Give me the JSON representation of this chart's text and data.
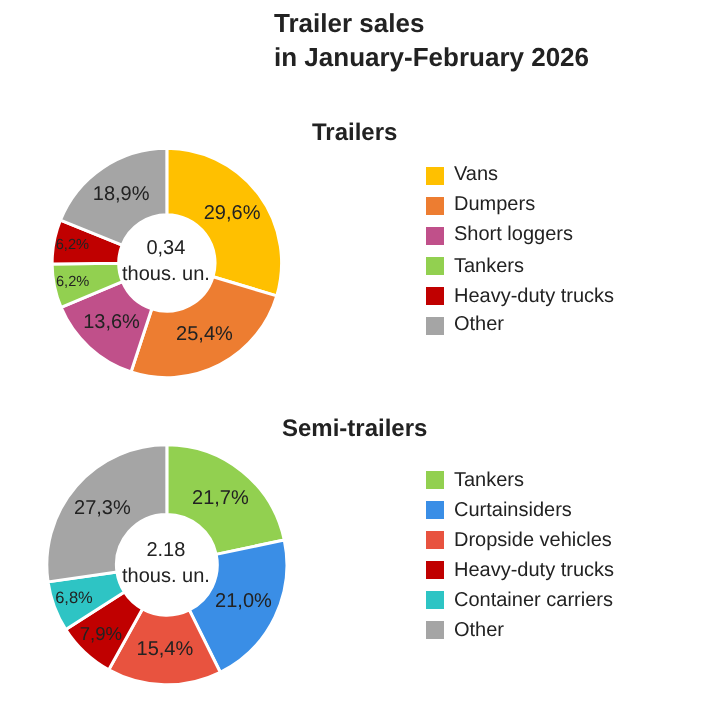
{
  "chart_data": [
    {
      "type": "donut",
      "title": "Trailer sales\nin January-February 2026",
      "subtitle": "Trailers",
      "categories": [
        "Vans",
        "Dumpers",
        "Short loggers",
        "Tankers",
        "Heavy-duty trucks",
        "Other"
      ],
      "values": [
        29.6,
        25.4,
        13.6,
        6.2,
        6.2,
        18.9
      ],
      "value_labels": [
        "29,6%",
        "25,4%",
        "13,6%",
        "6,2%",
        "6,2%",
        "18,9%"
      ],
      "colors": [
        "#ffc000",
        "#ed7d31",
        "#c0508a",
        "#92d050",
        "#c00000",
        "#a5a5a5"
      ],
      "annotations": [
        "0,34\nthous. un."
      ],
      "legend": "right"
    },
    {
      "type": "donut",
      "title": "Semi-trailers",
      "categories": [
        "Tankers",
        "Curtainsiders",
        "Dropside vehicles",
        "Heavy-duty trucks",
        "Container carriers",
        "Other"
      ],
      "values": [
        21.7,
        21.0,
        15.4,
        7.9,
        6.8,
        27.3
      ],
      "value_labels": [
        "21,7%",
        "21,0%",
        "15,4%",
        "7,9%",
        "6,8%",
        "27,3%"
      ],
      "colors": [
        "#92d050",
        "#3a8ee6",
        "#e8533f",
        "#c00000",
        "#2ec4c4",
        "#a5a5a5"
      ],
      "annotations": [
        "2.18\nthous. un."
      ],
      "legend": "right"
    }
  ]
}
